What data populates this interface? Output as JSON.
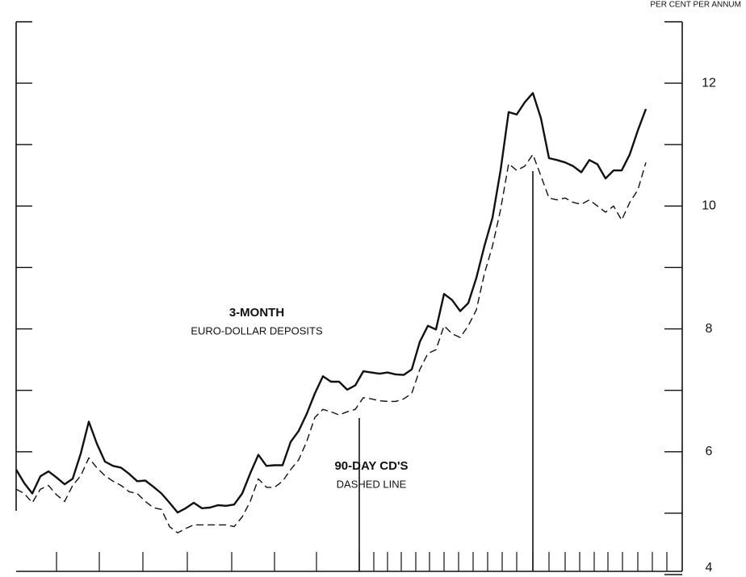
{
  "chart_data": {
    "type": "line",
    "y_axis_label": "PER CENT PER ANNUM",
    "annotations": [
      "3-MONTH",
      "EURO-DOLLAR DEPOSITS",
      "90-DAY CD'S",
      "DASHED LINE"
    ],
    "categories": [
      null,
      null,
      null,
      null,
      null,
      null,
      null,
      null,
      null,
      null,
      null,
      null,
      null,
      null,
      null,
      null,
      null,
      null,
      null,
      null,
      null,
      null,
      null,
      null,
      null,
      null,
      null,
      null,
      null,
      null,
      null,
      null,
      null,
      null,
      null,
      null,
      null,
      null,
      null,
      null,
      null,
      null,
      null,
      null,
      null,
      null,
      null,
      null,
      null,
      null,
      null,
      null,
      null,
      null,
      null,
      null,
      null,
      null,
      null,
      null,
      null,
      null,
      null,
      null,
      null,
      null,
      null,
      null,
      null,
      null,
      null,
      null,
      null,
      null,
      null,
      null,
      null,
      null,
      null
    ],
    "series": [
      {
        "color": "#111111",
        "dashed": false,
        "width": 2.4,
        "values": [
          5.71,
          5.49,
          5.32,
          5.6,
          5.68,
          5.58,
          5.47,
          5.56,
          5.97,
          6.49,
          6.13,
          5.84,
          5.77,
          5.74,
          5.64,
          5.52,
          5.53,
          5.43,
          5.32,
          5.17,
          5.01,
          5.08,
          5.17,
          5.08,
          5.09,
          5.13,
          5.12,
          5.14,
          5.32,
          5.65,
          5.95,
          5.77,
          5.78,
          5.78,
          6.16,
          6.34,
          6.62,
          6.95,
          7.23,
          7.14,
          7.14,
          7.01,
          7.08,
          7.31,
          7.29,
          7.27,
          7.29,
          7.26,
          7.25,
          7.34,
          7.79,
          8.05,
          7.99,
          8.57,
          8.47,
          8.29,
          8.42,
          8.83,
          9.35,
          9.81,
          10.58,
          11.53,
          11.49,
          11.69,
          11.84,
          11.43,
          10.78,
          10.75,
          10.71,
          10.65,
          10.55,
          10.75,
          10.68,
          10.45,
          10.58,
          10.58,
          10.84,
          11.23,
          11.58
        ]
      },
      {
        "color": "#111111",
        "dashed": true,
        "width": 1.4,
        "values": [
          5.39,
          5.32,
          5.17,
          5.39,
          5.45,
          5.3,
          5.19,
          5.45,
          5.61,
          5.9,
          5.74,
          5.61,
          5.52,
          5.45,
          5.35,
          5.32,
          5.19,
          5.09,
          5.06,
          4.78,
          4.68,
          4.75,
          4.81,
          4.81,
          4.81,
          4.81,
          4.81,
          4.78,
          4.94,
          5.19,
          5.56,
          5.42,
          5.42,
          5.52,
          5.71,
          5.87,
          6.17,
          6.56,
          6.69,
          6.65,
          6.6,
          6.65,
          6.69,
          6.88,
          6.86,
          6.83,
          6.82,
          6.82,
          6.86,
          6.95,
          7.34,
          7.6,
          7.66,
          8.05,
          7.92,
          7.86,
          8.05,
          8.31,
          8.9,
          9.35,
          9.94,
          10.69,
          10.58,
          10.65,
          10.84,
          10.49,
          10.13,
          10.1,
          10.13,
          10.06,
          10.03,
          10.1,
          10.0,
          9.9,
          10.0,
          9.77,
          10.06,
          10.26,
          10.71
        ]
      }
    ],
    "ylim": [
      4,
      13
    ],
    "yticks": [
      4,
      6,
      8,
      10,
      12
    ],
    "yticks_minor": [
      5,
      7,
      9,
      11,
      13
    ]
  }
}
